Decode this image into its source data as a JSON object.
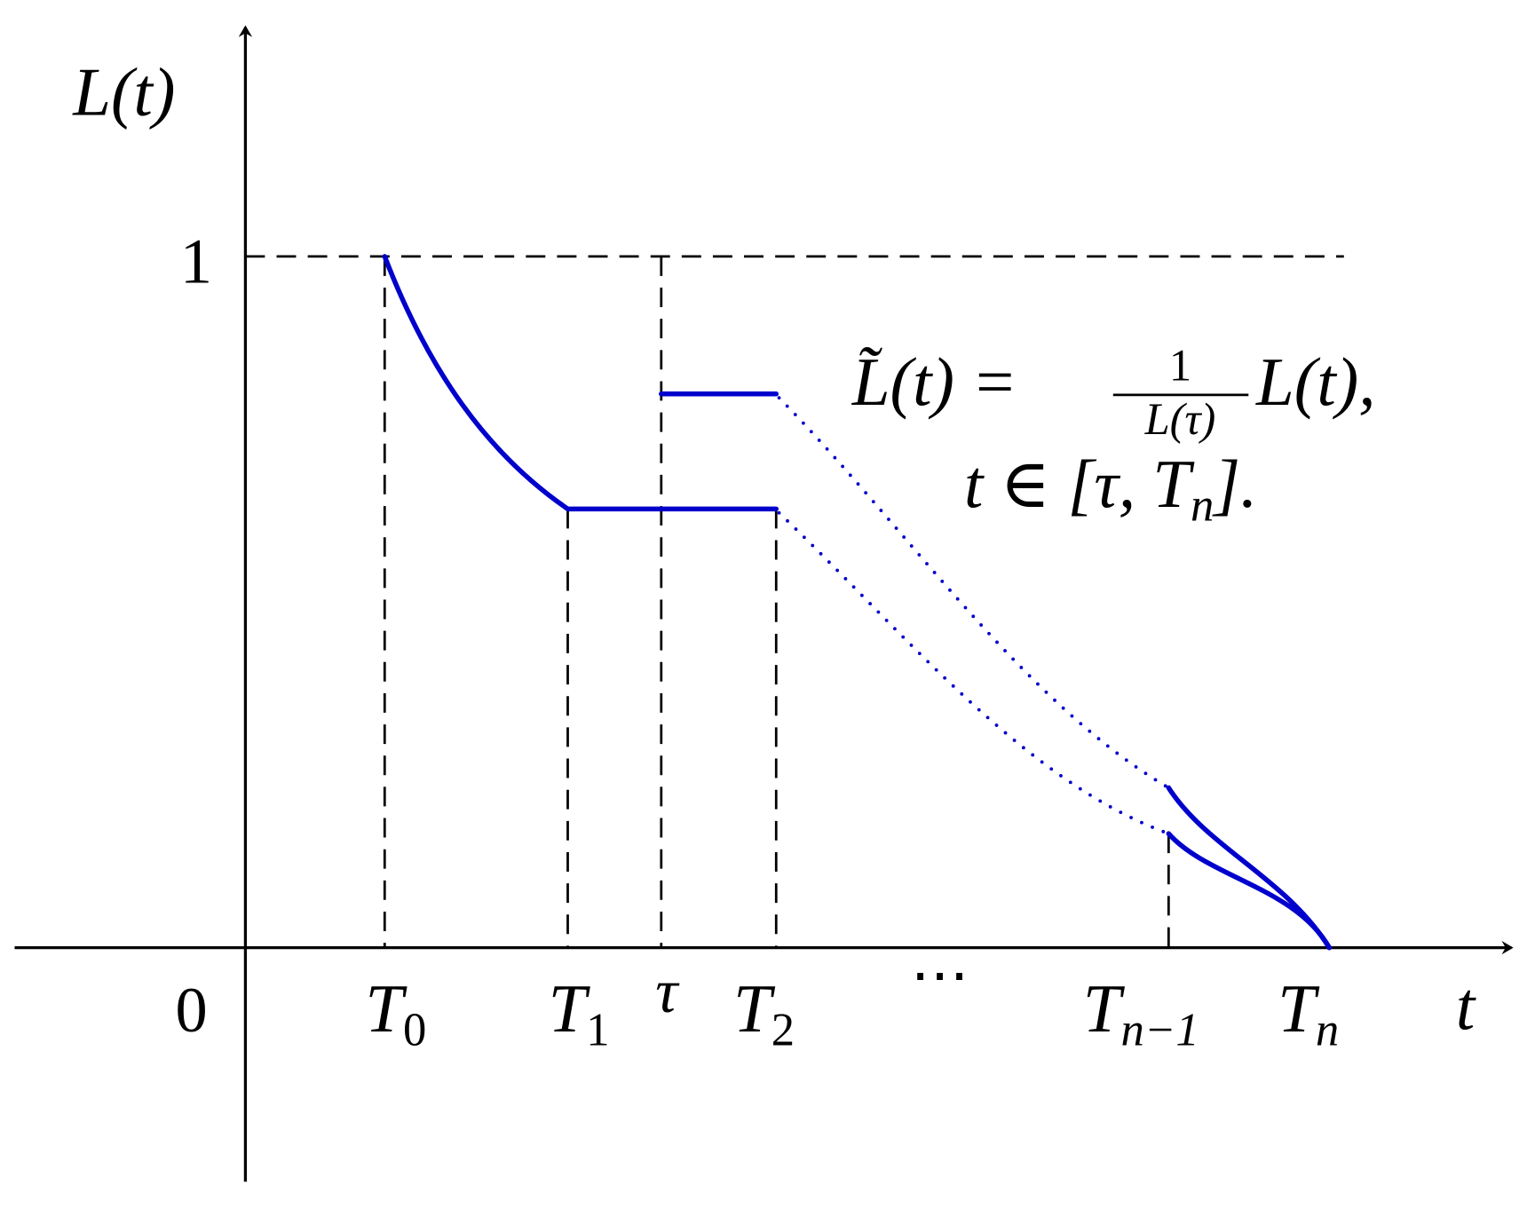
{
  "axes": {
    "y_label": "L(t)",
    "x_label": "t",
    "y_tick_one": "1",
    "origin": "0"
  },
  "x_markers": [
    {
      "base": "T",
      "sub": "0"
    },
    {
      "base": "T",
      "sub": "1"
    },
    {
      "base": "τ"
    },
    {
      "base": "T",
      "sub": "2"
    },
    {
      "base": "⋯"
    },
    {
      "base": "T",
      "sub": "n−1"
    },
    {
      "base": "T",
      "sub": "n"
    }
  ],
  "formula": {
    "lhs": "L̃(t) =",
    "numerator": "1",
    "denominator": "L(τ)",
    "rhs": "L(t),",
    "domain_prefix": "t ∈ [τ, T",
    "domain_sub": "n",
    "domain_suffix": "]."
  }
}
